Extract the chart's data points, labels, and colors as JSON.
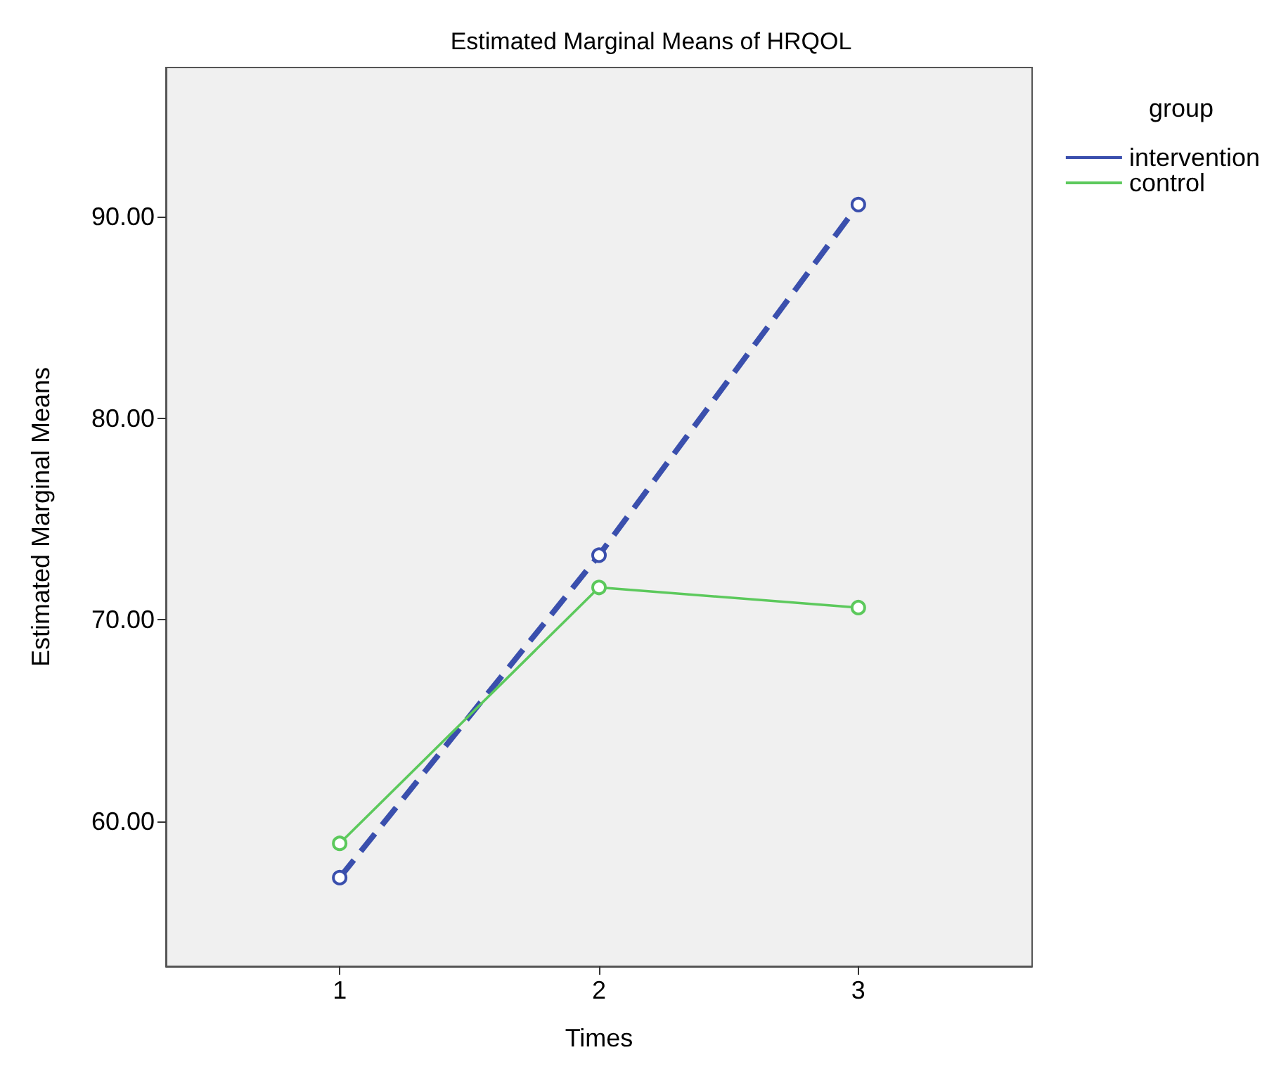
{
  "chart_data": {
    "type": "line",
    "title": "Estimated Marginal Means of HRQOL",
    "xlabel": "Times",
    "ylabel": "Estimated Marginal Means",
    "legend_title": "group",
    "legend": "top right",
    "marker": "circle",
    "grid": false,
    "x": [
      1,
      2,
      3
    ],
    "xlim": [
      0.33,
      3.67
    ],
    "xticks": [
      1,
      2,
      3
    ],
    "ylim": [
      52.8,
      97.4
    ],
    "yticks": [
      {
        "value": 60,
        "label": "60.00"
      },
      {
        "value": 70,
        "label": "70.00"
      },
      {
        "value": 80,
        "label": "80.00"
      },
      {
        "value": 90,
        "label": "90.00"
      }
    ],
    "series": [
      {
        "name": "intervention",
        "color": "#3a4fad",
        "line_style": "dashed",
        "values": [
          57.2,
          73.2,
          90.6
        ]
      },
      {
        "name": "control",
        "color": "#5cc95c",
        "line_style": "solid",
        "values": [
          58.9,
          71.6,
          70.6
        ]
      }
    ]
  }
}
